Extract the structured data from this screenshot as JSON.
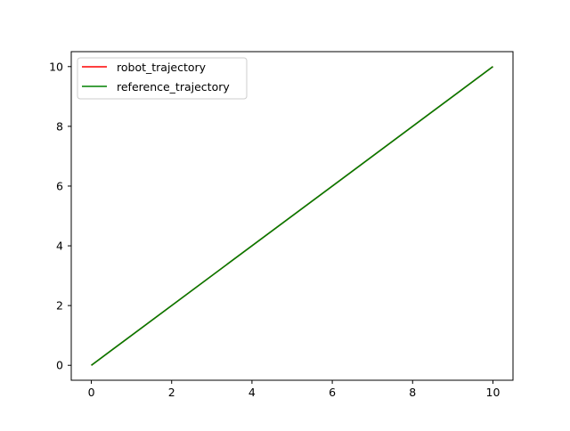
{
  "chart_data": {
    "type": "line",
    "title": "",
    "xlabel": "",
    "ylabel": "",
    "xlim": [
      -0.5,
      10.5
    ],
    "ylim": [
      -0.5,
      10.5
    ],
    "xticks": [
      0,
      2,
      4,
      6,
      8,
      10
    ],
    "yticks": [
      0,
      2,
      4,
      6,
      8,
      10
    ],
    "grid": false,
    "legend_position": "upper-left",
    "series": [
      {
        "name": "robot_trajectory",
        "color": "#ff0000",
        "x": [
          0,
          10
        ],
        "y": [
          0,
          10
        ]
      },
      {
        "name": "reference_trajectory",
        "color": "#008000",
        "x": [
          0,
          10
        ],
        "y": [
          0,
          10
        ]
      }
    ]
  }
}
